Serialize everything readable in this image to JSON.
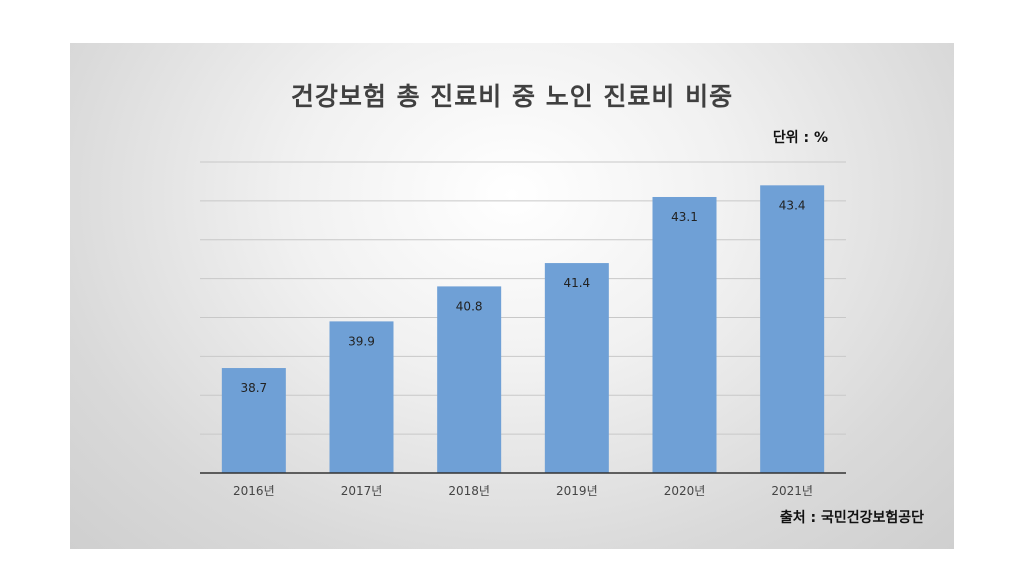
{
  "chart_data": {
    "type": "bar",
    "title": "건강보험 총 진료비 중 노인 진료비 비중",
    "unit_label": "단위 : %",
    "source_label": "출처 : 국민건강보험공단",
    "categories": [
      "2016년",
      "2017년",
      "2018년",
      "2019년",
      "2020년",
      "2021년"
    ],
    "values": [
      38.7,
      39.9,
      40.8,
      41.4,
      43.1,
      43.4
    ],
    "value_labels": [
      "38.7",
      "39.9",
      "40.8",
      "41.4",
      "43.1",
      "43.4"
    ],
    "ylim": [
      36.0,
      44.0
    ],
    "grid": true,
    "bar_color": "#6fa0d6"
  }
}
